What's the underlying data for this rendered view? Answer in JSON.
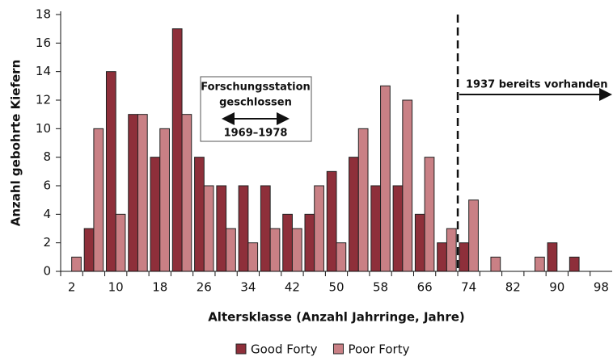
{
  "chart_data": {
    "type": "bar",
    "categories": [
      "2",
      null,
      "10",
      null,
      "18",
      null,
      "26",
      null,
      "34",
      null,
      "42",
      null,
      "50",
      null,
      "58",
      null,
      "66",
      null,
      "74",
      null,
      "82",
      null,
      "90",
      null,
      "98"
    ],
    "series": [
      {
        "name": "Good Forty",
        "color": "#8e2f3a",
        "values": [
          0,
          3,
          14,
          11,
          8,
          17,
          8,
          6,
          6,
          6,
          4,
          4,
          7,
          8,
          6,
          6,
          4,
          2,
          2,
          0,
          0,
          0,
          2,
          1,
          0
        ]
      },
      {
        "name": "Poor Forty",
        "color": "#c98085",
        "values": [
          1,
          10,
          4,
          11,
          10,
          11,
          6,
          3,
          2,
          3,
          3,
          6,
          2,
          10,
          13,
          12,
          8,
          3,
          5,
          1,
          0,
          1,
          0,
          0,
          0
        ]
      }
    ],
    "xlabel": "Altersklasse (Anzahl Jahrringe, Jahre)",
    "ylabel": "Anzahl gebohrte Kiefern",
    "ylim": [
      0,
      18
    ],
    "yticks": [
      0,
      2,
      4,
      6,
      8,
      10,
      12,
      14,
      16,
      18
    ],
    "grid": false,
    "legend": "bottom",
    "annotations": {
      "closed": [
        "Forschungsstation",
        "geschlossen"
      ],
      "period": "1969–1978",
      "existing": "1937 bereits vorhanden"
    }
  }
}
